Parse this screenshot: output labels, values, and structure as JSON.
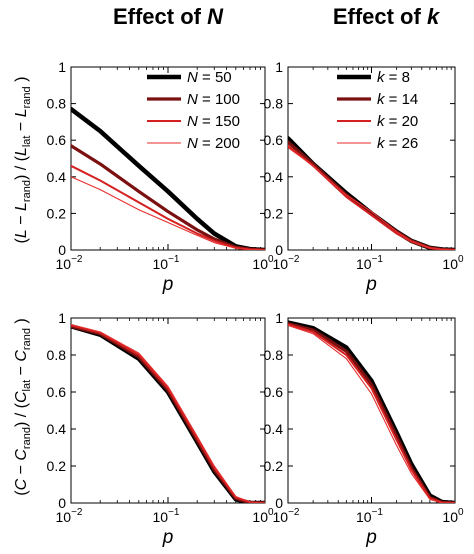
{
  "figure": {
    "left_column_title": "Effect of ",
    "left_column_var": "N",
    "right_column_title": "Effect of ",
    "right_column_var": "k",
    "ylabel_top": {
      "a": "(",
      "b": "L",
      "c": " − ",
      "d": "L",
      "e": "rand",
      "f": ") / (",
      "g": "L",
      "h": "lat",
      "i": " − ",
      "j": "L",
      "k": "rand",
      "l": " )"
    },
    "ylabel_bottom": {
      "a": "(",
      "b": "C",
      "c": " − ",
      "d": "C",
      "e": "rand",
      "f": ") / (",
      "g": "C",
      "h": "lat",
      "i": " − ",
      "j": "C",
      "k": "rand",
      "l": " )"
    }
  },
  "chart_data": [
    {
      "type": "line",
      "panel": "top-left",
      "xlabel": "p",
      "ylabel": "(L − Lrand) / (Llat − Lrand)",
      "xscale": "log",
      "xlim": [
        0.01,
        1
      ],
      "ylim": [
        0,
        1
      ],
      "xticks": [
        {
          "base": "10",
          "exp": "−2",
          "v": 0.01
        },
        {
          "base": "10",
          "exp": "−1",
          "v": 0.1
        },
        {
          "base": "10",
          "exp": "0",
          "v": 1
        }
      ],
      "yticks": [
        {
          "label": "0",
          "v": 0
        },
        {
          "label": "0.2",
          "v": 0.2
        },
        {
          "label": "0.4",
          "v": 0.4
        },
        {
          "label": "0.6",
          "v": 0.6
        },
        {
          "label": "0.8",
          "v": 0.8
        },
        {
          "label": "1",
          "v": 1
        }
      ],
      "legend_position": "top-right",
      "x": [
        0.01,
        0.02,
        0.05,
        0.1,
        0.2,
        0.3,
        0.5,
        0.7,
        1.0
      ],
      "series": [
        {
          "var": "N",
          "label": " = 50",
          "color": "#000000",
          "width": 4.5,
          "values": [
            0.77,
            0.65,
            0.46,
            0.32,
            0.17,
            0.09,
            0.02,
            0.005,
            0.0
          ]
        },
        {
          "var": "N",
          "label": " = 100",
          "color": "#7a1010",
          "width": 3.2,
          "values": [
            0.57,
            0.47,
            0.32,
            0.21,
            0.11,
            0.06,
            0.015,
            0.004,
            0.0
          ]
        },
        {
          "var": "N",
          "label": " = 150",
          "color": "#d42020",
          "width": 2.0,
          "values": [
            0.46,
            0.38,
            0.26,
            0.17,
            0.09,
            0.05,
            0.012,
            0.003,
            0.0
          ]
        },
        {
          "var": "N",
          "label": " = 200",
          "color": "#e62e2e",
          "width": 1.1,
          "values": [
            0.4,
            0.33,
            0.22,
            0.15,
            0.08,
            0.04,
            0.01,
            0.003,
            0.0
          ]
        }
      ]
    },
    {
      "type": "line",
      "panel": "top-right",
      "xlabel": "p",
      "ylabel": "",
      "xscale": "log",
      "xlim": [
        0.01,
        1
      ],
      "ylim": [
        0,
        1
      ],
      "xticks": [
        {
          "base": "10",
          "exp": "−2",
          "v": 0.01
        },
        {
          "base": "10",
          "exp": "−1",
          "v": 0.1
        },
        {
          "base": "10",
          "exp": "0",
          "v": 1
        }
      ],
      "yticks": [
        {
          "label": "0",
          "v": 0
        },
        {
          "label": "0.2",
          "v": 0.2
        },
        {
          "label": "0.4",
          "v": 0.4
        },
        {
          "label": "0.6",
          "v": 0.6
        },
        {
          "label": "0.8",
          "v": 0.8
        },
        {
          "label": "1",
          "v": 1
        }
      ],
      "legend_position": "top-right",
      "x": [
        0.01,
        0.02,
        0.05,
        0.1,
        0.2,
        0.3,
        0.5,
        0.7,
        1.0
      ],
      "series": [
        {
          "var": "k",
          "label": " = 8",
          "color": "#000000",
          "width": 4.5,
          "values": [
            0.61,
            0.47,
            0.31,
            0.2,
            0.1,
            0.05,
            0.012,
            0.003,
            0.0
          ]
        },
        {
          "var": "k",
          "label": " = 14",
          "color": "#7a1010",
          "width": 3.2,
          "values": [
            0.59,
            0.47,
            0.3,
            0.2,
            0.1,
            0.05,
            0.012,
            0.003,
            0.0
          ]
        },
        {
          "var": "k",
          "label": " = 20",
          "color": "#d42020",
          "width": 2.0,
          "values": [
            0.57,
            0.46,
            0.29,
            0.19,
            0.09,
            0.045,
            0.011,
            0.003,
            0.0
          ]
        },
        {
          "var": "k",
          "label": " = 26",
          "color": "#e62e2e",
          "width": 1.1,
          "values": [
            0.56,
            0.46,
            0.3,
            0.21,
            0.1,
            0.05,
            0.012,
            0.003,
            0.0
          ]
        }
      ]
    },
    {
      "type": "line",
      "panel": "bottom-left",
      "xlabel": "p",
      "ylabel": "(C − Crand) / (Clat − Crand)",
      "xscale": "log",
      "xlim": [
        0.01,
        1
      ],
      "ylim": [
        0,
        1
      ],
      "xticks": [
        {
          "base": "10",
          "exp": "−2",
          "v": 0.01
        },
        {
          "base": "10",
          "exp": "−1",
          "v": 0.1
        },
        {
          "base": "10",
          "exp": "0",
          "v": 1
        }
      ],
      "yticks": [
        {
          "label": "0",
          "v": 0
        },
        {
          "label": "0.2",
          "v": 0.2
        },
        {
          "label": "0.4",
          "v": 0.4
        },
        {
          "label": "0.6",
          "v": 0.6
        },
        {
          "label": "0.8",
          "v": 0.8
        },
        {
          "label": "1",
          "v": 1
        }
      ],
      "x": [
        0.01,
        0.02,
        0.05,
        0.1,
        0.2,
        0.3,
        0.5,
        0.7,
        1.0
      ],
      "series": [
        {
          "color": "#000000",
          "width": 4.5,
          "values": [
            0.955,
            0.91,
            0.78,
            0.6,
            0.33,
            0.17,
            0.02,
            0.0,
            0.0
          ]
        },
        {
          "color": "#7a1010",
          "width": 3.2,
          "values": [
            0.955,
            0.915,
            0.79,
            0.61,
            0.34,
            0.18,
            0.025,
            0.0,
            0.0
          ]
        },
        {
          "color": "#d42020",
          "width": 2.0,
          "values": [
            0.96,
            0.92,
            0.8,
            0.62,
            0.35,
            0.19,
            0.03,
            0.005,
            0.0
          ]
        },
        {
          "color": "#e62e2e",
          "width": 1.1,
          "values": [
            0.965,
            0.925,
            0.81,
            0.63,
            0.36,
            0.2,
            0.035,
            0.005,
            0.0
          ]
        }
      ]
    },
    {
      "type": "line",
      "panel": "bottom-right",
      "xlabel": "p",
      "ylabel": "",
      "xscale": "log",
      "xlim": [
        0.01,
        1
      ],
      "ylim": [
        0,
        1
      ],
      "xticks": [
        {
          "base": "10",
          "exp": "−2",
          "v": 0.01
        },
        {
          "base": "10",
          "exp": "−1",
          "v": 0.1
        },
        {
          "base": "10",
          "exp": "0",
          "v": 1
        }
      ],
      "yticks": [
        {
          "label": "0",
          "v": 0
        },
        {
          "label": "0.2",
          "v": 0.2
        },
        {
          "label": "0.4",
          "v": 0.4
        },
        {
          "label": "0.6",
          "v": 0.6
        },
        {
          "label": "0.8",
          "v": 0.8
        },
        {
          "label": "1",
          "v": 1
        }
      ],
      "x": [
        0.01,
        0.02,
        0.05,
        0.1,
        0.2,
        0.3,
        0.5,
        0.7,
        1.0
      ],
      "series": [
        {
          "color": "#000000",
          "width": 4.5,
          "values": [
            0.975,
            0.945,
            0.84,
            0.66,
            0.38,
            0.21,
            0.04,
            0.005,
            0.0
          ]
        },
        {
          "color": "#7a1010",
          "width": 3.2,
          "values": [
            0.97,
            0.935,
            0.82,
            0.64,
            0.36,
            0.19,
            0.03,
            0.003,
            0.0
          ]
        },
        {
          "color": "#d42020",
          "width": 2.0,
          "values": [
            0.965,
            0.925,
            0.8,
            0.62,
            0.34,
            0.18,
            0.025,
            0.002,
            0.0
          ]
        },
        {
          "color": "#e62e2e",
          "width": 1.1,
          "values": [
            0.96,
            0.915,
            0.78,
            0.59,
            0.31,
            0.16,
            0.02,
            0.0,
            0.0
          ]
        }
      ]
    }
  ]
}
